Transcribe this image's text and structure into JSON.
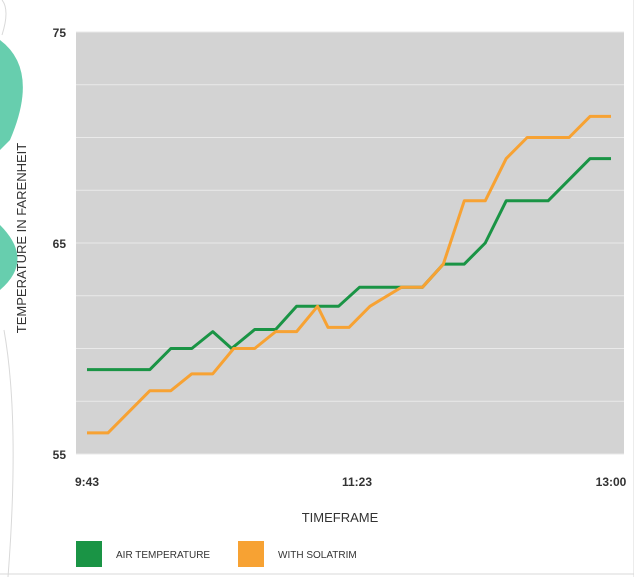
{
  "chart_data": {
    "type": "line",
    "title": "",
    "xlabel": "TIMEFRAME",
    "ylabel": "TEMPERATURE IN FARENHEIT",
    "ylim": [
      55,
      75
    ],
    "yticks": [
      "55",
      "65",
      "75"
    ],
    "xticks": [
      "9:43",
      "11:23",
      "13:00"
    ],
    "xlim": [
      0,
      26
    ],
    "grid": true,
    "legend_position": "bottom-left",
    "series": [
      {
        "name": "AIR TEMPERATURE",
        "color": "#1a9445",
        "points": [
          [
            0,
            59
          ],
          [
            1,
            59
          ],
          [
            2,
            59
          ],
          [
            3,
            59
          ],
          [
            4,
            60
          ],
          [
            5,
            60
          ],
          [
            6,
            60.8
          ],
          [
            6.9,
            60
          ],
          [
            8,
            60.9
          ],
          [
            9,
            60.9
          ],
          [
            10,
            62
          ],
          [
            11,
            62
          ],
          [
            12,
            62
          ],
          [
            13,
            62.9
          ],
          [
            14,
            62.9
          ],
          [
            15,
            62.9
          ],
          [
            16,
            62.9
          ],
          [
            17,
            64
          ],
          [
            18,
            64
          ],
          [
            19,
            65
          ],
          [
            20,
            67
          ],
          [
            21,
            67
          ],
          [
            22,
            67
          ],
          [
            23,
            68
          ],
          [
            24,
            69
          ],
          [
            25,
            69
          ]
        ]
      },
      {
        "name": "WITH SOLATRIM",
        "color": "#f7a233",
        "points": [
          [
            0,
            56
          ],
          [
            1,
            56
          ],
          [
            2,
            57
          ],
          [
            3,
            58
          ],
          [
            4,
            58
          ],
          [
            5,
            58.8
          ],
          [
            6,
            58.8
          ],
          [
            7,
            60
          ],
          [
            8,
            60
          ],
          [
            9,
            60.8
          ],
          [
            10,
            60.8
          ],
          [
            11,
            62
          ],
          [
            11.5,
            61
          ],
          [
            12.5,
            61
          ],
          [
            13.5,
            62
          ],
          [
            15,
            62.9
          ],
          [
            16,
            62.9
          ],
          [
            17,
            64
          ],
          [
            18,
            67
          ],
          [
            19,
            67
          ],
          [
            20,
            69
          ],
          [
            21,
            70
          ],
          [
            22,
            70
          ],
          [
            23,
            70
          ],
          [
            24,
            71
          ],
          [
            25,
            71
          ]
        ]
      }
    ]
  }
}
